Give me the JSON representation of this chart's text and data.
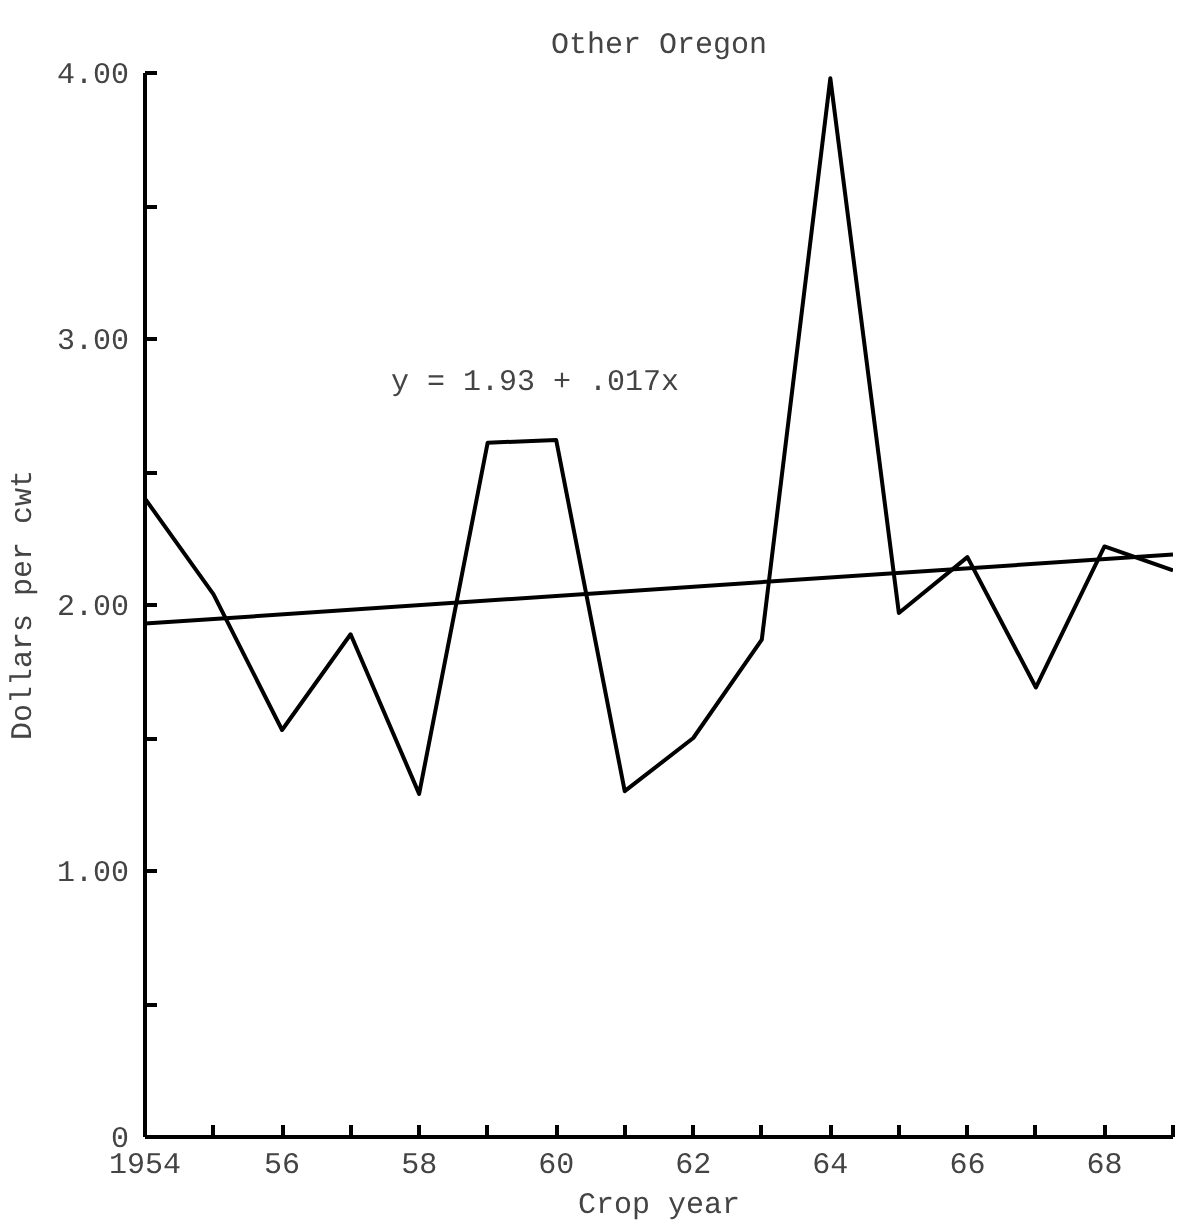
{
  "chart_data": {
    "type": "line",
    "title": "Other Oregon",
    "xlabel": "Crop year",
    "ylabel": "Dollars per cwt",
    "x": [
      1954,
      1955,
      1956,
      1957,
      1958,
      1959,
      1960,
      1961,
      1962,
      1963,
      1964,
      1965,
      1966,
      1967,
      1968,
      1969
    ],
    "series": [
      {
        "color": "#000000",
        "values": [
          2.4,
          2.04,
          1.53,
          1.89,
          1.29,
          2.61,
          2.62,
          1.3,
          1.5,
          1.87,
          3.98,
          1.97,
          2.18,
          1.69,
          2.22,
          2.13
        ]
      },
      {
        "type": "line",
        "color": "#000000",
        "x": [
          1954,
          1969
        ],
        "values": [
          1.93,
          2.19
        ]
      }
    ],
    "annotations": [
      "y = 1.93 + .017x"
    ],
    "xlim": [
      1954,
      1969
    ],
    "ylim": [
      0,
      4
    ],
    "xticks": [
      1954,
      {
        "value": 1955,
        "label": null
      },
      {
        "value": 1956,
        "label": "56"
      },
      {
        "value": 1957,
        "label": null
      },
      {
        "value": 1958,
        "label": "58"
      },
      {
        "value": 1959,
        "label": null
      },
      {
        "value": 1960,
        "label": "60"
      },
      {
        "value": 1961,
        "label": null
      },
      {
        "value": 1962,
        "label": "62"
      },
      {
        "value": 1963,
        "label": null
      },
      {
        "value": 1964,
        "label": "64"
      },
      {
        "value": 1965,
        "label": null
      },
      {
        "value": 1966,
        "label": "66"
      },
      {
        "value": 1967,
        "label": null
      },
      {
        "value": 1968,
        "label": "68"
      },
      {
        "value": 1969,
        "label": null
      }
    ],
    "yticks": [
      0,
      {
        "value": 0.5,
        "label": null
      },
      {
        "value": 1,
        "label": "1.00"
      },
      {
        "value": 1.5,
        "label": null
      },
      {
        "value": 2,
        "label": "2.00"
      },
      {
        "value": 2.5,
        "label": null
      },
      {
        "value": 3,
        "label": "3.00"
      },
      {
        "value": 3.5,
        "label": null
      },
      {
        "value": 4,
        "label": "4.00"
      }
    ],
    "grid": false,
    "marker": "none",
    "line_style": "solid"
  }
}
